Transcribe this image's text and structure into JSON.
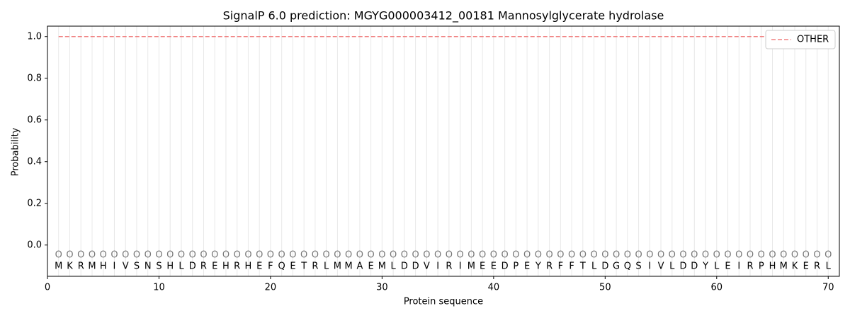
{
  "chart_data": {
    "type": "line",
    "title": "SignalP 6.0 prediction: MGYG000003412_00181 Mannosylglycerate hydrolase",
    "x_label": "Protein sequence",
    "y_label": "Probability",
    "x": [
      1,
      2,
      3,
      4,
      5,
      6,
      7,
      8,
      9,
      10,
      11,
      12,
      13,
      14,
      15,
      16,
      17,
      18,
      19,
      20,
      21,
      22,
      23,
      24,
      25,
      26,
      27,
      28,
      29,
      30,
      31,
      32,
      33,
      34,
      35,
      36,
      37,
      38,
      39,
      40,
      41,
      42,
      43,
      44,
      45,
      46,
      47,
      48,
      49,
      50,
      51,
      52,
      53,
      54,
      55,
      56,
      57,
      58,
      59,
      60,
      61,
      62,
      63,
      64,
      65,
      66,
      67,
      68,
      69,
      70
    ],
    "residues": [
      "M",
      "K",
      "R",
      "M",
      "H",
      "I",
      "V",
      "S",
      "N",
      "S",
      "H",
      "L",
      "D",
      "R",
      "E",
      "H",
      "R",
      "H",
      "E",
      "F",
      "Q",
      "E",
      "T",
      "R",
      "L",
      "M",
      "M",
      "A",
      "E",
      "M",
      "L",
      "D",
      "D",
      "V",
      "I",
      "R",
      "I",
      "M",
      "E",
      "E",
      "D",
      "P",
      "E",
      "Y",
      "R",
      "F",
      "F",
      "T",
      "L",
      "D",
      "G",
      "Q",
      "S",
      "I",
      "V",
      "L",
      "D",
      "D",
      "Y",
      "L",
      "E",
      "I",
      "R",
      "P",
      "H",
      "M",
      "K",
      "E",
      "R",
      "L"
    ],
    "predicted_labels": [
      "O",
      "O",
      "O",
      "O",
      "O",
      "O",
      "O",
      "O",
      "O",
      "O",
      "O",
      "O",
      "O",
      "O",
      "O",
      "O",
      "O",
      "O",
      "O",
      "O",
      "O",
      "O",
      "O",
      "O",
      "O",
      "O",
      "O",
      "O",
      "O",
      "O",
      "O",
      "O",
      "O",
      "O",
      "O",
      "O",
      "O",
      "O",
      "O",
      "O",
      "O",
      "O",
      "O",
      "O",
      "O",
      "O",
      "O",
      "O",
      "O",
      "O",
      "O",
      "O",
      "O",
      "O",
      "O",
      "O",
      "O",
      "O",
      "O",
      "O",
      "O",
      "O",
      "O",
      "O",
      "O",
      "O",
      "O",
      "O",
      "O",
      "O"
    ],
    "series": [
      {
        "name": "OTHER",
        "color": "#f08080",
        "dashed": true,
        "values": [
          1,
          1,
          1,
          1,
          1,
          1,
          1,
          1,
          1,
          1,
          1,
          1,
          1,
          1,
          1,
          1,
          1,
          1,
          1,
          1,
          1,
          1,
          1,
          1,
          1,
          1,
          1,
          1,
          1,
          1,
          1,
          1,
          1,
          1,
          1,
          1,
          1,
          1,
          1,
          1,
          1,
          1,
          1,
          1,
          1,
          1,
          1,
          1,
          1,
          1,
          1,
          1,
          1,
          1,
          1,
          1,
          1,
          1,
          1,
          1,
          1,
          1,
          1,
          1,
          1,
          1,
          1,
          1,
          1,
          1
        ]
      }
    ],
    "xlim": [
      0,
      71
    ],
    "ylim": [
      -0.15,
      1.05
    ],
    "xticks": [
      0,
      10,
      20,
      30,
      40,
      50,
      60,
      70
    ],
    "yticks": [
      {
        "value": 0,
        "label": "0.0"
      },
      {
        "value": 0.2,
        "label": "0.2"
      },
      {
        "value": 0.4,
        "label": "0.4"
      },
      {
        "value": 0.6,
        "label": "0.6"
      },
      {
        "value": 0.8,
        "label": "0.8"
      },
      {
        "value": 1,
        "label": "1.0"
      }
    ],
    "legend": "upper right"
  }
}
